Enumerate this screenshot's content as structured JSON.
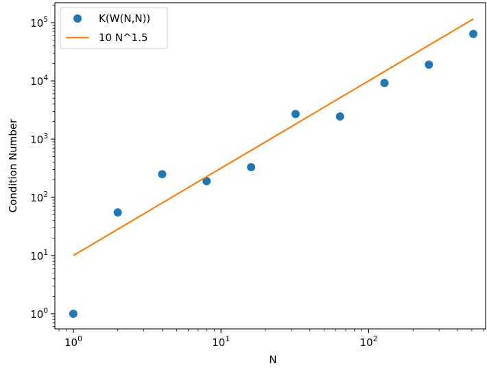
{
  "chart_data": {
    "type": "scatter",
    "xlabel": "N",
    "ylabel": "Condition Number",
    "x_scale": "log",
    "y_scale": "log",
    "xlim": [
      0.75,
      620
    ],
    "ylim": [
      0.55,
      220000
    ],
    "x_ticks": [
      {
        "value": 1,
        "base": "10",
        "exp": "0"
      },
      {
        "value": 10,
        "base": "10",
        "exp": "1"
      },
      {
        "value": 100,
        "base": "10",
        "exp": "2"
      }
    ],
    "y_ticks": [
      {
        "value": 1,
        "base": "10",
        "exp": "0"
      },
      {
        "value": 10,
        "base": "10",
        "exp": "1"
      },
      {
        "value": 100,
        "base": "10",
        "exp": "2"
      },
      {
        "value": 1000,
        "base": "10",
        "exp": "3"
      },
      {
        "value": 10000,
        "base": "10",
        "exp": "4"
      },
      {
        "value": 100000,
        "base": "10",
        "exp": "5"
      }
    ],
    "grid": false,
    "legend_position": "top-left",
    "series": [
      {
        "name": "K(W(N,N))",
        "kind": "scatter",
        "color": "#1f77b4",
        "x": [
          1,
          2,
          4,
          8,
          16,
          32,
          64,
          128,
          256,
          512
        ],
        "y": [
          1,
          55,
          250,
          190,
          330,
          2700,
          2450,
          9200,
          19000,
          64000
        ]
      },
      {
        "name": "10 N^1.5",
        "kind": "line",
        "color": "#ff7f0e",
        "x": [
          1,
          512
        ],
        "y": [
          10,
          115852
        ]
      }
    ]
  }
}
